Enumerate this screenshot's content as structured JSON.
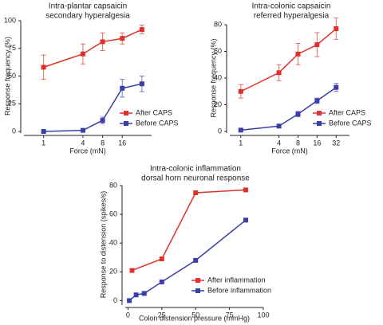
{
  "chart_data": [
    {
      "type": "line",
      "title": [
        "Intra-plantar capsaicin",
        "secondary hyperalgesia"
      ],
      "x_label": "Force (mN)",
      "y_label": "Response frequency (%)",
      "x": [
        1,
        4,
        8,
        16,
        32
      ],
      "xlim": [
        0.5,
        45
      ],
      "xticks": [
        1,
        4,
        8,
        16
      ],
      "log_x": true,
      "ylim": [
        0,
        100
      ],
      "yticks": [
        0,
        25,
        50,
        75,
        100
      ],
      "legend": "lower right",
      "series": [
        {
          "name": "After CAPS",
          "color": "#e0302a",
          "values": [
            58,
            70,
            81,
            84,
            92
          ],
          "errors": [
            11,
            9,
            8,
            5,
            4
          ]
        },
        {
          "name": "Before CAPS",
          "color": "#3a3fa8",
          "values": [
            0,
            1,
            10,
            39,
            43
          ],
          "errors": [
            0,
            0,
            3,
            8,
            7
          ]
        }
      ]
    },
    {
      "type": "line",
      "title": [
        "Intra-colonic capsaicin",
        "referred hyperalgesia"
      ],
      "x_label": "Force (mN)",
      "y_label": "Response frequency (%)",
      "x": [
        1,
        4,
        8,
        16,
        32
      ],
      "xlim": [
        0.67,
        52
      ],
      "xticks": [
        1,
        4,
        8,
        16,
        32
      ],
      "log_x": true,
      "ylim": [
        0,
        80
      ],
      "yticks": [
        0,
        20,
        40,
        60,
        80
      ],
      "legend": "lower right",
      "series": [
        {
          "name": "After CAPS",
          "color": "#e0302a",
          "values": [
            30,
            44,
            58,
            65,
            77
          ],
          "errors": [
            5,
            6,
            8,
            9,
            8
          ]
        },
        {
          "name": "Before CAPS",
          "color": "#3a3fa8",
          "values": [
            1,
            4,
            13,
            23,
            33
          ],
          "errors": [
            1,
            1,
            2,
            2,
            3
          ]
        }
      ]
    },
    {
      "type": "line",
      "title": [
        "Intra-colonic inflammation",
        "dorsal horn neuronal response"
      ],
      "x_label": "Colon distension pressure (mmHg)",
      "y_label": "Response to distension (spikes/s)",
      "xlim": [
        -2,
        100
      ],
      "xticks": [
        0,
        25,
        50,
        75,
        100
      ],
      "log_x": false,
      "ylim": [
        -2,
        80
      ],
      "yticks": [
        0,
        20,
        40,
        60,
        80
      ],
      "legend": "lower right",
      "series": [
        {
          "name": "After inflammation",
          "color": "#e0302a",
          "x": [
            3,
            25,
            50,
            87
          ],
          "values": [
            21,
            29,
            75,
            77
          ]
        },
        {
          "name": "Before inflammation",
          "color": "#3a3fa8",
          "x": [
            1,
            6,
            12,
            25,
            50,
            87
          ],
          "values": [
            0,
            4,
            5,
            13,
            28,
            56
          ]
        }
      ]
    }
  ]
}
